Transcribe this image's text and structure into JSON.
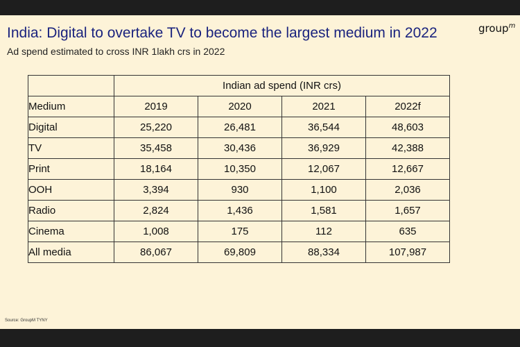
{
  "slide": {
    "title": "India: Digital to overtake TV to become the largest medium in 2022",
    "logo_text": "group",
    "logo_sup": "m",
    "subtitle": "Ad spend estimated to cross INR 1lakh crs in 2022",
    "source": "Source: GroupM TYNY"
  },
  "table": {
    "group_header": "Indian ad spend (INR crs)",
    "header": [
      "Medium",
      "2019",
      "2020",
      "2021",
      "2022f"
    ],
    "rows": [
      [
        "Digital",
        "25,220",
        "26,481",
        "36,544",
        "48,603"
      ],
      [
        "TV",
        "35,458",
        "30,436",
        "36,929",
        "42,388"
      ],
      [
        "Print",
        "18,164",
        "10,350",
        "12,067",
        "12,667"
      ],
      [
        "OOH",
        "3,394",
        "930",
        "1,100",
        "2,036"
      ],
      [
        "Radio",
        "2,824",
        "1,436",
        "1,581",
        "1,657"
      ],
      [
        "Cinema",
        "1,008",
        "175",
        "112",
        "635"
      ],
      [
        "All media",
        "86,067",
        "69,809",
        "88,334",
        "107,987"
      ]
    ]
  }
}
